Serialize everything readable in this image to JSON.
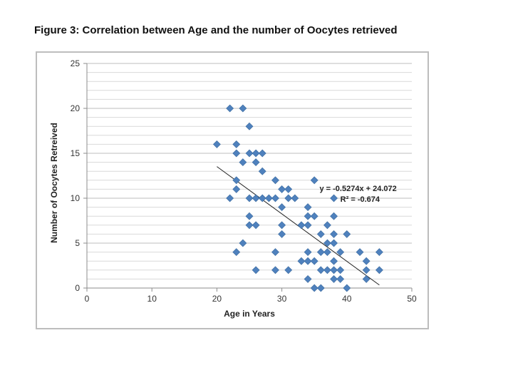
{
  "figure_title": "Figure 3: Correlation between Age and the number of Oocytes retrieved",
  "chart_data": {
    "type": "scatter",
    "xlabel": "Age in Years",
    "ylabel": "Number of Oocytes Retreived",
    "xlim": [
      0,
      50
    ],
    "ylim": [
      0,
      25
    ],
    "x_ticks": [
      "0",
      "10",
      "20",
      "30",
      "40",
      "50"
    ],
    "y_ticks": [
      "0",
      "5",
      "10",
      "15",
      "20",
      "25"
    ],
    "grid": true,
    "marker_color": "#4f81bd",
    "trendline": {
      "slope": -0.5274,
      "intercept": 24.072,
      "x_range": [
        20,
        45
      ],
      "equation": "y = -0.5274x + 24.072",
      "r_squared": "R² = -0.674"
    },
    "points": [
      [
        20,
        16
      ],
      [
        22,
        20
      ],
      [
        24,
        20
      ],
      [
        25,
        18
      ],
      [
        23,
        16
      ],
      [
        23,
        15
      ],
      [
        25,
        15
      ],
      [
        26,
        15
      ],
      [
        27,
        15
      ],
      [
        24,
        14
      ],
      [
        26,
        14
      ],
      [
        27,
        13
      ],
      [
        23,
        12
      ],
      [
        29,
        12
      ],
      [
        35,
        12
      ],
      [
        23,
        11
      ],
      [
        30,
        11
      ],
      [
        31,
        11
      ],
      [
        22,
        10
      ],
      [
        25,
        10
      ],
      [
        26,
        10
      ],
      [
        27,
        10
      ],
      [
        28,
        10
      ],
      [
        29,
        10
      ],
      [
        31,
        10
      ],
      [
        32,
        10
      ],
      [
        38,
        10
      ],
      [
        30,
        9
      ],
      [
        34,
        9
      ],
      [
        25,
        8
      ],
      [
        34,
        8
      ],
      [
        35,
        8
      ],
      [
        38,
        8
      ],
      [
        25,
        7
      ],
      [
        26,
        7
      ],
      [
        30,
        7
      ],
      [
        33,
        7
      ],
      [
        34,
        7
      ],
      [
        37,
        7
      ],
      [
        30,
        6
      ],
      [
        36,
        6
      ],
      [
        38,
        6
      ],
      [
        40,
        6
      ],
      [
        24,
        5
      ],
      [
        37,
        5
      ],
      [
        38,
        5
      ],
      [
        23,
        4
      ],
      [
        29,
        4
      ],
      [
        34,
        4
      ],
      [
        36,
        4
      ],
      [
        37,
        4
      ],
      [
        39,
        4
      ],
      [
        42,
        4
      ],
      [
        45,
        4
      ],
      [
        33,
        3
      ],
      [
        34,
        3
      ],
      [
        35,
        3
      ],
      [
        38,
        3
      ],
      [
        43,
        3
      ],
      [
        26,
        2
      ],
      [
        29,
        2
      ],
      [
        31,
        2
      ],
      [
        36,
        2
      ],
      [
        37,
        2
      ],
      [
        38,
        2
      ],
      [
        39,
        2
      ],
      [
        43,
        2
      ],
      [
        45,
        2
      ],
      [
        34,
        1
      ],
      [
        38,
        1
      ],
      [
        39,
        1
      ],
      [
        43,
        1
      ],
      [
        35,
        0
      ],
      [
        36,
        0
      ],
      [
        40,
        0
      ]
    ]
  }
}
